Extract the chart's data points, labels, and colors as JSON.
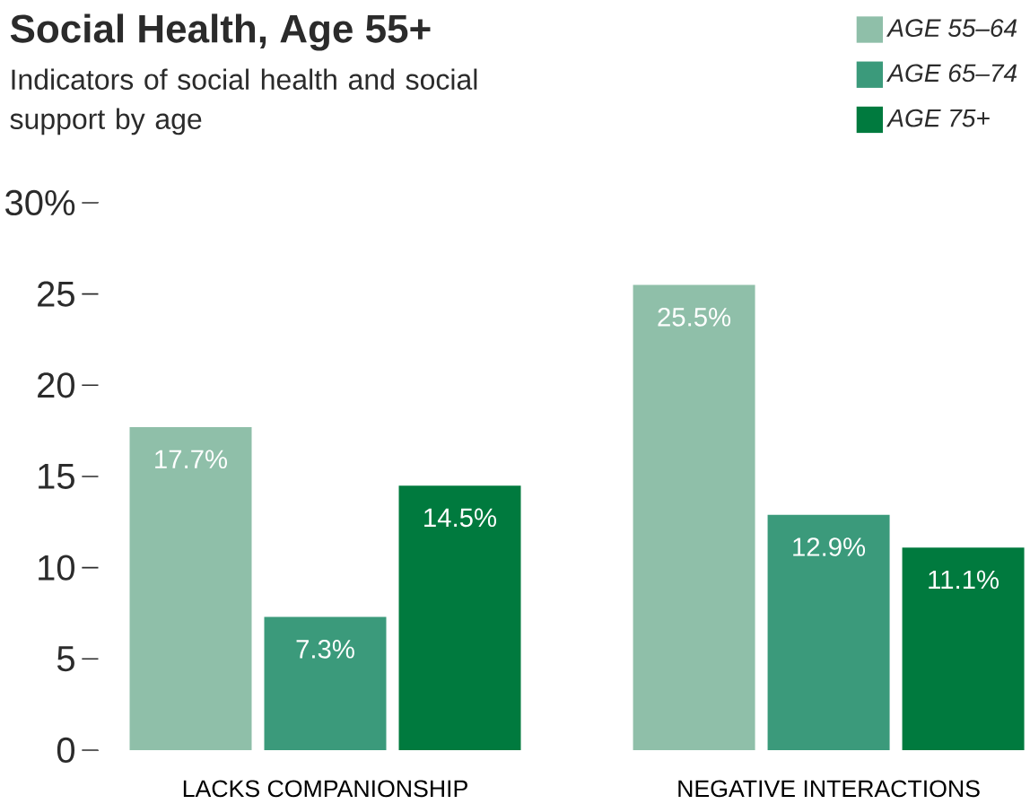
{
  "chart_data": {
    "type": "bar",
    "title": "Social Health, Age 55+",
    "subtitle": "Indicators of social health and social support by age",
    "categories": [
      "LACKS COMPANIONSHIP",
      "NEGATIVE INTERACTIONS"
    ],
    "ylim": [
      0,
      30
    ],
    "yticks": [
      0,
      5,
      10,
      15,
      20,
      25,
      {
        "value": 30,
        "label": "30%"
      }
    ],
    "legend": "top right",
    "series": [
      {
        "name": "AGE 55–64",
        "color": "#8fbfa9",
        "values": [
          17.7,
          25.5
        ],
        "value_labels": [
          "17.7%",
          "25.5%"
        ]
      },
      {
        "name": "AGE 65–74",
        "color": "#3b9a7b",
        "values": [
          7.3,
          12.9
        ],
        "value_labels": [
          "7.3%",
          "12.9%"
        ]
      },
      {
        "name": "AGE 75+",
        "color": "#007a3e",
        "values": [
          14.5,
          11.1
        ],
        "value_labels": [
          "14.5%",
          "11.1%"
        ]
      }
    ]
  }
}
